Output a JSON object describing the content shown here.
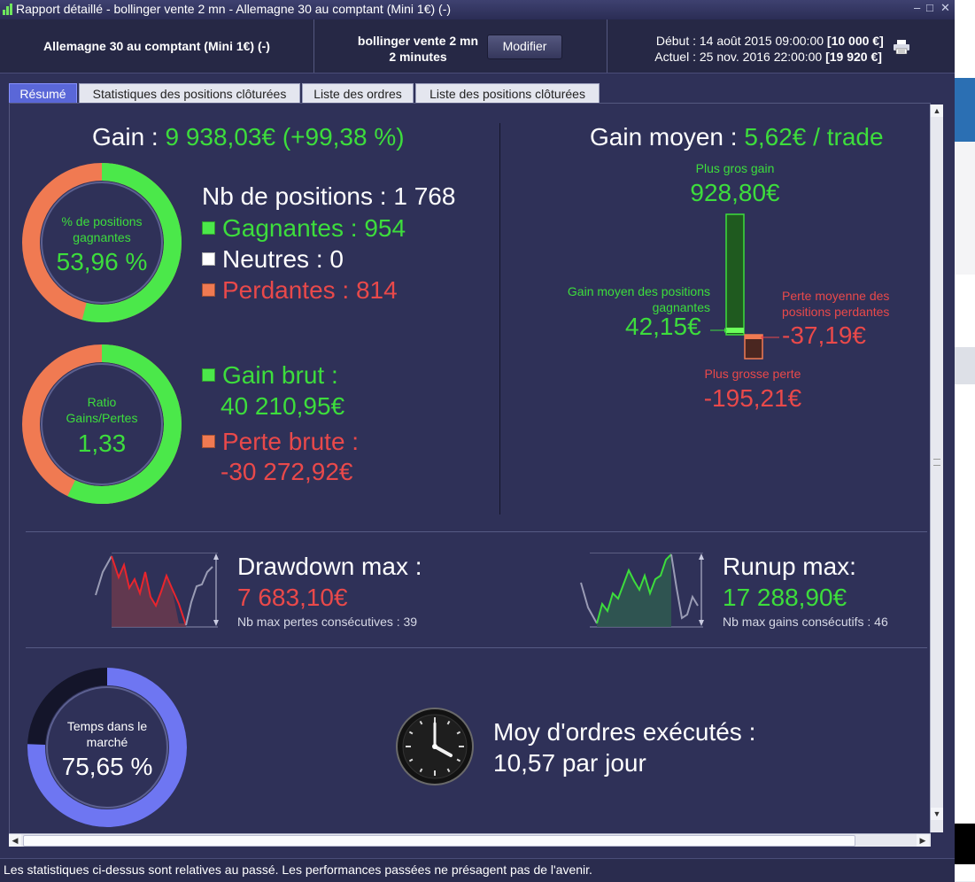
{
  "window": {
    "title": "Rapport détaillé - bollinger vente 2 mn - Allemagne 30 au comptant (Mini 1€) (-)"
  },
  "header": {
    "instrument": "Allemagne 30 au comptant (Mini 1€) (-)",
    "strategy_name": "bollinger vente 2 mn",
    "timeframe": "2 minutes",
    "modify_button": "Modifier",
    "start_label": "Début :",
    "start_date": "14 août 2015 09:00:00",
    "start_capital": "[10 000 €]",
    "current_label": "Actuel :",
    "current_date": "25 nov. 2016 22:00:00",
    "current_capital": "[19 920 €]"
  },
  "tabs": [
    {
      "label": "Résumé",
      "active": true
    },
    {
      "label": "Statistiques des positions clôturées",
      "active": false
    },
    {
      "label": "Liste des ordres",
      "active": false
    },
    {
      "label": "Liste des positions clôturées",
      "active": false
    }
  ],
  "summary": {
    "gain_label": "Gain :",
    "gain_value": "9 938,03€ (+99,38 %)",
    "donut_win_label": "% de positions gagnantes",
    "donut_win_value": "53,96 %",
    "donut_win_fraction": 0.5396,
    "positions_label": "Nb de positions : 1 768",
    "winning": "Gagnantes : 954",
    "neutral": "Neutres : 0",
    "losing": "Perdantes : 814",
    "donut_ratio_label": "Ratio Gains/Pertes",
    "donut_ratio_value": "1,33",
    "donut_ratio_fraction": 0.5705,
    "gross_gain_label": "Gain brut :",
    "gross_gain_value": "40 210,95€",
    "gross_loss_label": "Perte brute :",
    "gross_loss_value": "-30 272,92€"
  },
  "avg": {
    "title_label": "Gain moyen :",
    "title_value": "5,62€ / trade",
    "max_gain_label": "Plus gros gain",
    "max_gain_value": "928,80€",
    "avg_win_label": "Gain moyen des positions gagnantes",
    "avg_win_value": "42,15€",
    "avg_loss_label": "Perte moyenne des positions perdantes",
    "avg_loss_value": "-37,19€",
    "max_loss_label": "Plus grosse perte",
    "max_loss_value": "-195,21€"
  },
  "drawdown": {
    "title": "Drawdown max :",
    "value": "7 683,10€",
    "sub": "Nb max pertes consécutives : 39"
  },
  "runup": {
    "title": "Runup max:",
    "value": "17 288,90€",
    "sub": "Nb max gains consécutifs : 46"
  },
  "market": {
    "donut_label": "Temps dans le marché",
    "donut_value": "75,65 %",
    "donut_fraction": 0.7565,
    "orders_label": "Moy d'ordres exécutés :",
    "orders_value": "10,57 par jour"
  },
  "status": {
    "text": "Les statistiques ci-dessus sont relatives au passé. Les performances passées ne présagent pas de l'avenir."
  },
  "colors": {
    "win": "#3ddd3c",
    "loss": "#e9494a",
    "accent": "#5a67d8",
    "background": "#2f3158"
  }
}
